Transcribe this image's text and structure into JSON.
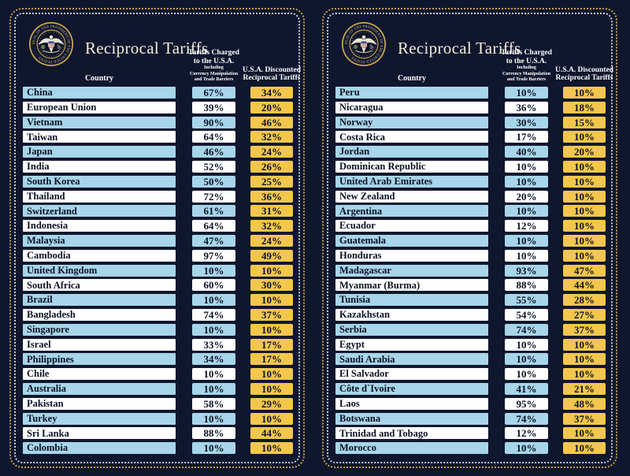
{
  "title": "Reciprocal Tariffs",
  "seal": {
    "ring_text": "SEAL OF THE PRESIDENT OF THE UNITED STATES · · ·"
  },
  "header": {
    "country_label": "Country",
    "charged_line1": "Tariffs Charged",
    "charged_line2": "to the U.S.A.",
    "charged_note1": "Including",
    "charged_note2": "Currency Manipulation",
    "charged_note3": "and Trade Barriers",
    "discounted_line1": "U.S.A. Discounted",
    "discounted_line2": "Reciprocal Tariffs"
  },
  "colors": {
    "background": "#10162d",
    "row_blue": "#a7d5e9",
    "row_white": "#ffffff",
    "gold": "#f3c74d",
    "border_outer": "#c2a045",
    "border_inner": "#c6cedd",
    "title": "#f2edda"
  },
  "chart_data": {
    "type": "table",
    "title": "Reciprocal Tariffs",
    "columns": [
      "Country",
      "Tariffs Charged to the U.S.A. Including Currency Manipulation and Trade Barriers",
      "U.S.A. Discounted Reciprocal Tariffs"
    ],
    "panels": [
      {
        "rows": [
          {
            "country": "China",
            "charged": "67%",
            "discounted": "34%"
          },
          {
            "country": "European Union",
            "charged": "39%",
            "discounted": "20%"
          },
          {
            "country": "Vietnam",
            "charged": "90%",
            "discounted": "46%"
          },
          {
            "country": "Taiwan",
            "charged": "64%",
            "discounted": "32%"
          },
          {
            "country": "Japan",
            "charged": "46%",
            "discounted": "24%"
          },
          {
            "country": "India",
            "charged": "52%",
            "discounted": "26%"
          },
          {
            "country": "South Korea",
            "charged": "50%",
            "discounted": "25%"
          },
          {
            "country": "Thailand",
            "charged": "72%",
            "discounted": "36%"
          },
          {
            "country": "Switzerland",
            "charged": "61%",
            "discounted": "31%"
          },
          {
            "country": "Indonesia",
            "charged": "64%",
            "discounted": "32%"
          },
          {
            "country": "Malaysia",
            "charged": "47%",
            "discounted": "24%"
          },
          {
            "country": "Cambodia",
            "charged": "97%",
            "discounted": "49%"
          },
          {
            "country": "United Kingdom",
            "charged": "10%",
            "discounted": "10%"
          },
          {
            "country": "South Africa",
            "charged": "60%",
            "discounted": "30%"
          },
          {
            "country": "Brazil",
            "charged": "10%",
            "discounted": "10%"
          },
          {
            "country": "Bangladesh",
            "charged": "74%",
            "discounted": "37%"
          },
          {
            "country": "Singapore",
            "charged": "10%",
            "discounted": "10%"
          },
          {
            "country": "Israel",
            "charged": "33%",
            "discounted": "17%"
          },
          {
            "country": "Philippines",
            "charged": "34%",
            "discounted": "17%"
          },
          {
            "country": "Chile",
            "charged": "10%",
            "discounted": "10%"
          },
          {
            "country": "Australia",
            "charged": "10%",
            "discounted": "10%"
          },
          {
            "country": "Pakistan",
            "charged": "58%",
            "discounted": "29%"
          },
          {
            "country": "Turkey",
            "charged": "10%",
            "discounted": "10%"
          },
          {
            "country": "Sri Lanka",
            "charged": "88%",
            "discounted": "44%"
          },
          {
            "country": "Colombia",
            "charged": "10%",
            "discounted": "10%"
          }
        ]
      },
      {
        "rows": [
          {
            "country": "Peru",
            "charged": "10%",
            "discounted": "10%"
          },
          {
            "country": "Nicaragua",
            "charged": "36%",
            "discounted": "18%"
          },
          {
            "country": "Norway",
            "charged": "30%",
            "discounted": "15%"
          },
          {
            "country": "Costa Rica",
            "charged": "17%",
            "discounted": "10%"
          },
          {
            "country": "Jordan",
            "charged": "40%",
            "discounted": "20%"
          },
          {
            "country": "Dominican Republic",
            "charged": "10%",
            "discounted": "10%"
          },
          {
            "country": "United Arab Emirates",
            "charged": "10%",
            "discounted": "10%"
          },
          {
            "country": "New Zealand",
            "charged": "20%",
            "discounted": "10%"
          },
          {
            "country": "Argentina",
            "charged": "10%",
            "discounted": "10%"
          },
          {
            "country": "Ecuador",
            "charged": "12%",
            "discounted": "10%"
          },
          {
            "country": "Guatemala",
            "charged": "10%",
            "discounted": "10%"
          },
          {
            "country": "Honduras",
            "charged": "10%",
            "discounted": "10%"
          },
          {
            "country": "Madagascar",
            "charged": "93%",
            "discounted": "47%"
          },
          {
            "country": "Myanmar (Burma)",
            "charged": "88%",
            "discounted": "44%"
          },
          {
            "country": "Tunisia",
            "charged": "55%",
            "discounted": "28%"
          },
          {
            "country": "Kazakhstan",
            "charged": "54%",
            "discounted": "27%"
          },
          {
            "country": "Serbia",
            "charged": "74%",
            "discounted": "37%"
          },
          {
            "country": "Egypt",
            "charged": "10%",
            "discounted": "10%"
          },
          {
            "country": "Saudi Arabia",
            "charged": "10%",
            "discounted": "10%"
          },
          {
            "country": "El Salvador",
            "charged": "10%",
            "discounted": "10%"
          },
          {
            "country": "Côte d`Ivoire",
            "charged": "41%",
            "discounted": "21%"
          },
          {
            "country": "Laos",
            "charged": "95%",
            "discounted": "48%"
          },
          {
            "country": "Botswana",
            "charged": "74%",
            "discounted": "37%"
          },
          {
            "country": "Trinidad and Tobago",
            "charged": "12%",
            "discounted": "10%"
          },
          {
            "country": "Morocco",
            "charged": "10%",
            "discounted": "10%"
          }
        ]
      }
    ]
  }
}
